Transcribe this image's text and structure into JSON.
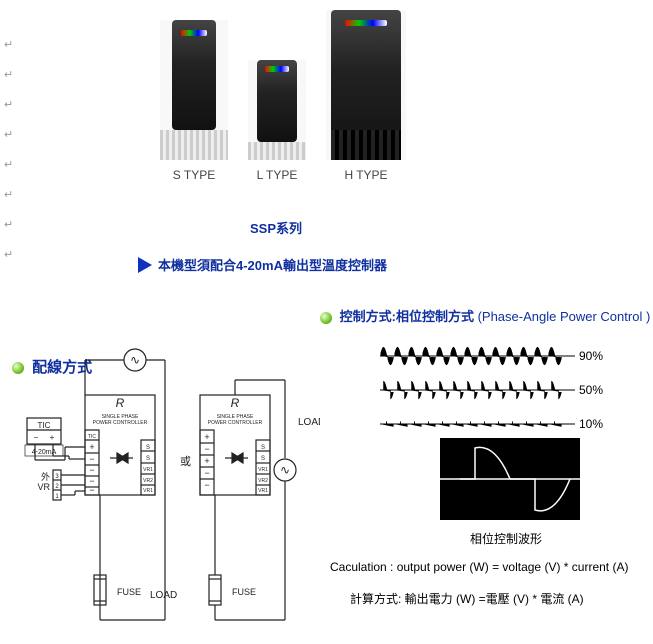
{
  "products": {
    "s": {
      "label": "S TYPE"
    },
    "l": {
      "label": "L TYPE"
    },
    "h": {
      "label": "H TYPE"
    }
  },
  "series_title": "SSP系列",
  "arrow_text": "本機型須配合4-20mA輸出型溫度控制器",
  "control_section": {
    "prefix": "控制方式:相位控制方式",
    "paren": " (Phase-Angle Power Control )"
  },
  "wiring_section_title": "配線方式",
  "waves": {
    "pct90": "90%",
    "pct50": "50%",
    "pct10": "10%",
    "stroke": "#000000",
    "fill": "#000000"
  },
  "phase_graph": {
    "bg": "#000000",
    "stroke": "#ffffff",
    "caption": "相位控制波形"
  },
  "calc": {
    "en": "Caculation : output power (W) = voltage (V) * current (A)",
    "zh": "計算方式: 輸出電力 (W) =電壓 (V) * 電流 (A)"
  },
  "wiring": {
    "r_label": "R",
    "controller_line1": "SINGLE PHASE",
    "controller_line2": "POWER CONTROLLER",
    "tic": "TIC",
    "range": "4-20mA",
    "ext": "外",
    "vr": "VR",
    "n1": "1",
    "n2": "2",
    "n3": "3",
    "or": "或",
    "load": "LOAD",
    "fuse": "FUSE",
    "plus": "+",
    "minus": "−",
    "t_s": "S",
    "t_vr1": "VR1",
    "t_vr2": "VR2",
    "t_tic": "TIC",
    "sine": "∿"
  },
  "colors": {
    "brand_blue": "#1030a0",
    "text": "#222222",
    "diagram_stroke": "#222222"
  }
}
